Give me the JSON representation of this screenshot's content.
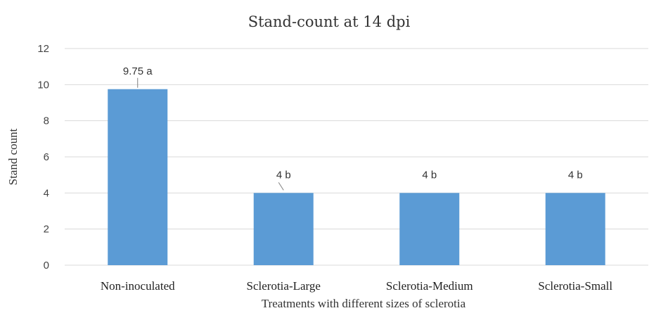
{
  "chart_data": {
    "type": "bar",
    "title": "Stand-count at 14 dpi",
    "xlabel": "Treatments with different sizes of sclerotia",
    "ylabel": "Stand count",
    "categories": [
      "Non-inoculated",
      "Sclerotia-Large",
      "Sclerotia-Medium",
      "Sclerotia-Small"
    ],
    "values": [
      9.75,
      4,
      4,
      4
    ],
    "data_labels": [
      "9.75 a",
      "4 b",
      "4 b",
      "4 b"
    ],
    "ylim": [
      0,
      12
    ],
    "yticks": [
      0,
      2,
      4,
      6,
      8,
      10,
      12
    ],
    "grid": true,
    "legend": "none",
    "bar_color": "#5b9bd5"
  }
}
